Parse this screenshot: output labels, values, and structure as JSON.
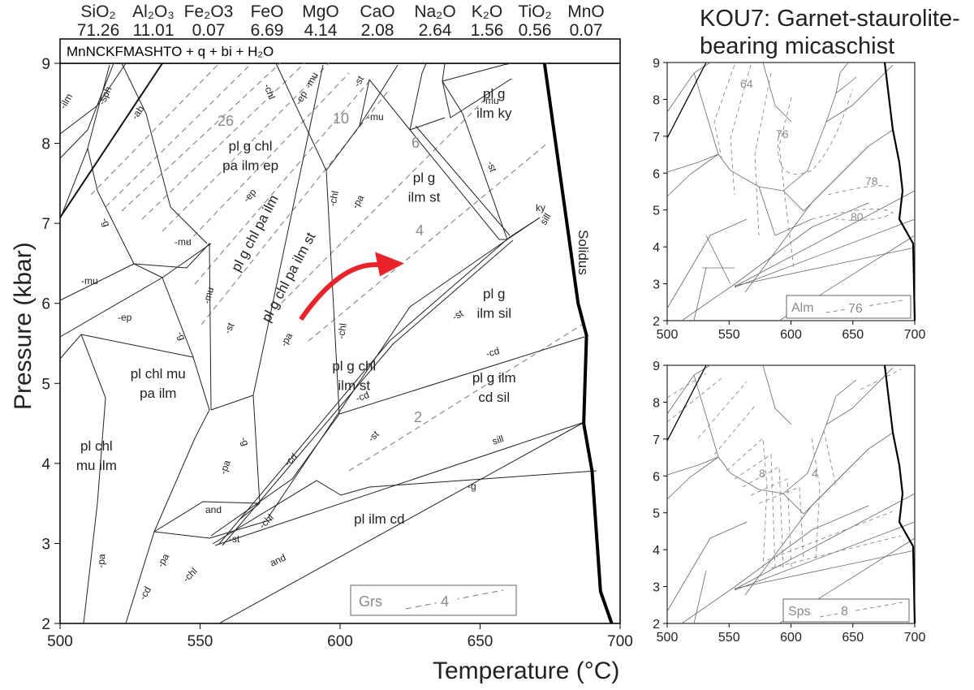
{
  "composition": {
    "oxides": [
      {
        "name": "SiO₂",
        "value": "71.26"
      },
      {
        "name": "Al₂O₃",
        "value": "11.01"
      },
      {
        "name": "Fe₂O3",
        "value": "0.07"
      },
      {
        "name": "FeO",
        "value": "6.69"
      },
      {
        "name": "MgO",
        "value": "4.14"
      },
      {
        "name": "CaO",
        "value": "2.08"
      },
      {
        "name": "Na₂O",
        "value": "2.64"
      },
      {
        "name": "K₂O",
        "value": "1.56"
      },
      {
        "name": "TiO₂",
        "value": "0.56"
      },
      {
        "name": "MnO",
        "value": "0.07"
      }
    ]
  },
  "sample": {
    "title_line1": "KOU7: Garnet-staurolite-",
    "title_line2": "bearing micaschist"
  },
  "chart_data": [
    {
      "type": "line",
      "subtype": "pseudosection",
      "system": "MnNCKFMASHTO + q + bi + H₂O",
      "xlabel": "Temperature (°C)",
      "ylabel": "Pressure (kbar)",
      "xlim": [
        500,
        700
      ],
      "ylim": [
        2,
        9
      ],
      "xticks": [
        500,
        550,
        600,
        650,
        700
      ],
      "yticks": [
        2,
        3,
        4,
        5,
        6,
        7,
        8,
        9
      ],
      "solidus": {
        "label": "Solidus",
        "points": [
          [
            673,
            9
          ],
          [
            677,
            8
          ],
          [
            681,
            7
          ],
          [
            685,
            6
          ],
          [
            688,
            5.6
          ],
          [
            687,
            4.5
          ],
          [
            690,
            3.9
          ],
          [
            693,
            2.4
          ],
          [
            697,
            2
          ]
        ]
      },
      "fields": [
        {
          "label": "pl g chl pa ilm ep",
          "T": 568,
          "P": 7.8
        },
        {
          "label": "pl g chl pa ilm",
          "T": 571,
          "P": 6.85
        },
        {
          "label": "pl g chl pa ilm st",
          "T": 583,
          "P": 6.3
        },
        {
          "label": "pl g ilm st",
          "T": 630,
          "P": 7.4
        },
        {
          "label": "pl g ilm ky",
          "T": 655,
          "P": 8.45
        },
        {
          "label": "pl g ilm sil",
          "T": 655,
          "P": 5.95
        },
        {
          "label": "pl g ilm cd sil",
          "T": 655,
          "P": 4.9
        },
        {
          "label": "pl g chl ilm st",
          "T": 605,
          "P": 5.05
        },
        {
          "label": "pl chl mu pa ilm",
          "T": 535,
          "P": 4.95
        },
        {
          "label": "pl chl mu ilm",
          "T": 513,
          "P": 4.05
        },
        {
          "label": "pl ilm cd",
          "T": 614,
          "P": 3.25
        }
      ],
      "reaction_labels": [
        "-ilm",
        "-sph",
        "-ab",
        "-g",
        "-mu",
        "-ep",
        "-chl",
        "-st",
        "-pa",
        "-ky",
        "sill",
        "ky",
        "-cd",
        "and"
      ],
      "isopleths": {
        "name": "Grs",
        "values": [
          26,
          10,
          6,
          4,
          2
        ],
        "legend_value": "4"
      },
      "pt_path": {
        "start": [
          586,
          5.8
        ],
        "end": [
          620,
          6.5
        ],
        "color": "#e8242a"
      }
    },
    {
      "type": "line",
      "subtype": "pseudosection-inset",
      "xlim": [
        500,
        700
      ],
      "ylim": [
        2,
        9
      ],
      "xticks": [
        500,
        550,
        600,
        650,
        700
      ],
      "yticks": [
        2,
        3,
        4,
        5,
        6,
        7,
        8,
        9
      ],
      "isopleths": {
        "name": "Alm",
        "values": [
          64,
          76,
          78,
          80
        ],
        "legend_value": "76"
      }
    },
    {
      "type": "line",
      "subtype": "pseudosection-inset",
      "xlim": [
        500,
        700
      ],
      "ylim": [
        2,
        9
      ],
      "xticks": [
        500,
        550,
        600,
        650,
        700
      ],
      "yticks": [
        2,
        3,
        4,
        5,
        6,
        7,
        8,
        9
      ],
      "isopleths": {
        "name": "Sps",
        "values": [
          8,
          4
        ],
        "legend_value": "8"
      }
    }
  ],
  "colors": {
    "isopleth": "#8a8a8a",
    "boundary": "#333333",
    "path": "#e8242a"
  }
}
